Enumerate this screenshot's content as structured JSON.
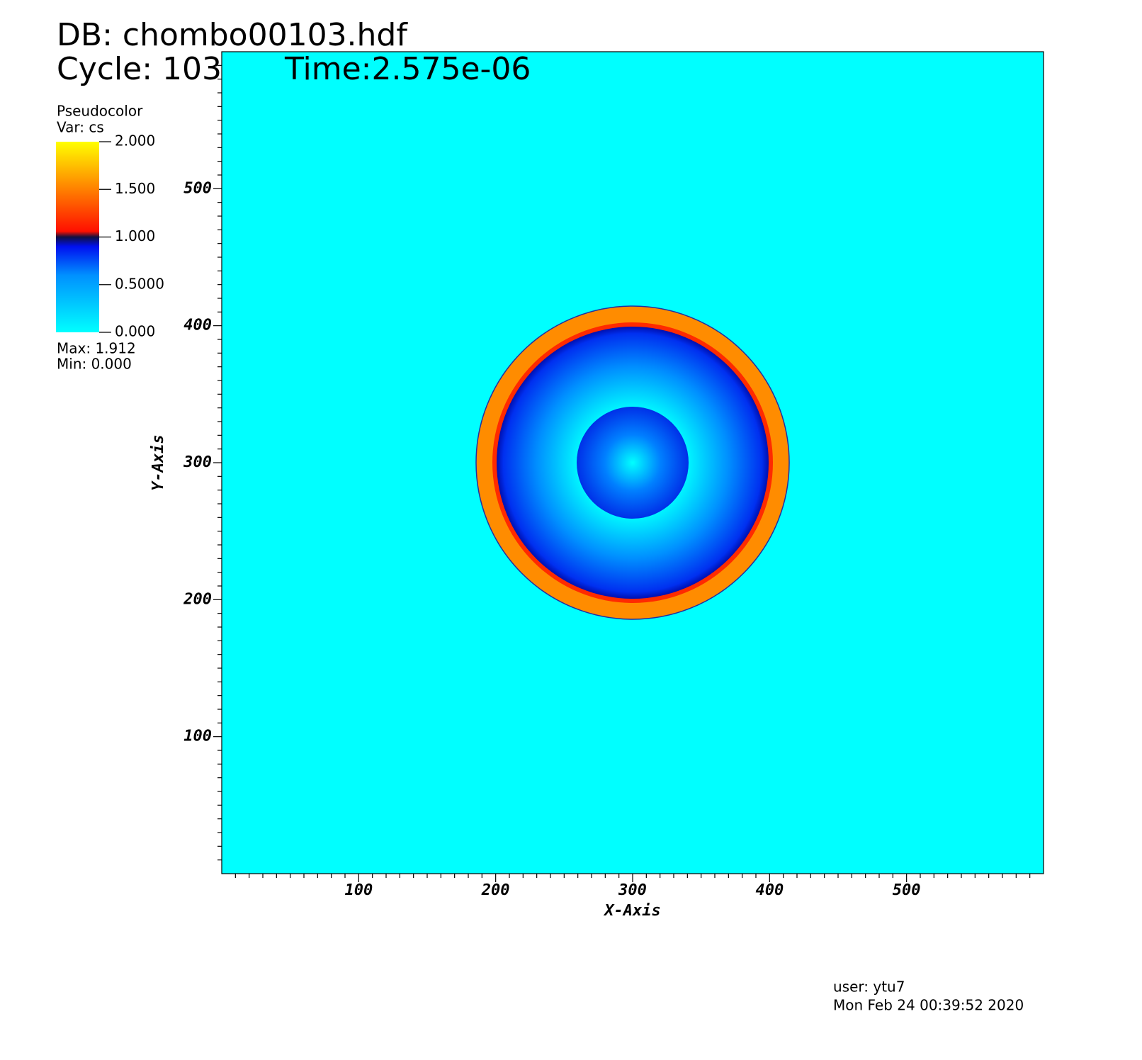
{
  "chart_data": {
    "type": "pseudocolor",
    "title": "DB: chombo00103.hdf",
    "subtitle": "Cycle: 103",
    "time": "Time:2.575e-06",
    "xlabel": "X-Axis",
    "ylabel": "Y-Axis",
    "xlim": [
      0,
      600
    ],
    "ylim": [
      0,
      600
    ],
    "xticks": [
      100,
      200,
      300,
      400,
      500
    ],
    "yticks": [
      100,
      200,
      300,
      400,
      500
    ],
    "xminorticks": [
      10,
      20,
      30,
      40,
      50,
      60,
      70,
      80,
      90,
      110,
      120,
      130,
      140,
      150,
      160,
      170,
      180,
      190,
      210,
      220,
      230,
      240,
      250,
      260,
      270,
      280,
      290,
      310,
      320,
      330,
      340,
      350,
      360,
      370,
      380,
      390,
      410,
      420,
      430,
      440,
      450,
      460,
      470,
      480,
      490,
      510,
      520,
      530,
      540,
      550,
      560,
      570,
      580,
      590
    ],
    "yminorticks": [
      10,
      20,
      30,
      40,
      50,
      60,
      70,
      80,
      90,
      110,
      120,
      130,
      140,
      150,
      160,
      170,
      180,
      190,
      210,
      220,
      230,
      240,
      250,
      260,
      270,
      280,
      290,
      310,
      320,
      330,
      340,
      350,
      360,
      370,
      380,
      390,
      410,
      420,
      430,
      440,
      450,
      460,
      470,
      480,
      490,
      510,
      520,
      530,
      540,
      550,
      560,
      570,
      580,
      590
    ],
    "legend": {
      "title": "Pseudocolor",
      "var": "Var: cs",
      "lim": [
        0,
        2
      ],
      "ticks": [
        {
          "value": 0,
          "label": "0.000"
        },
        {
          "value": 0.5,
          "label": "0.5000"
        },
        {
          "value": 1,
          "label": "1.000"
        },
        {
          "value": 1.5,
          "label": "1.500"
        },
        {
          "value": 2,
          "label": "2.000"
        }
      ],
      "max": "Max:  1.912",
      "min": "Min:  0.000"
    },
    "user": "user: ytu7",
    "date": "Mon Feb 24 00:39:52 2020"
  }
}
